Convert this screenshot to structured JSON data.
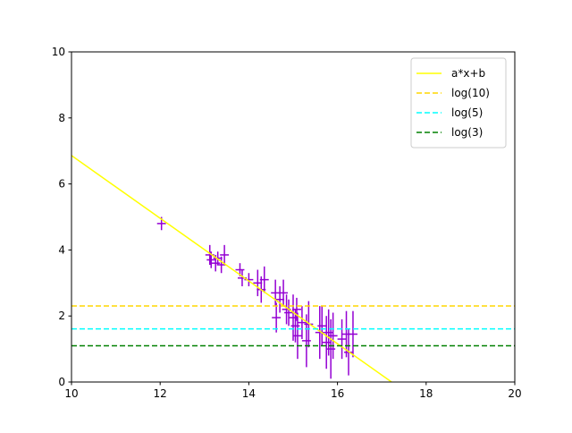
{
  "chart_data": {
    "type": "scatter",
    "xlim": [
      10,
      20
    ],
    "ylim": [
      0,
      10
    ],
    "xticks": [
      10,
      12,
      14,
      16,
      18,
      20
    ],
    "yticks": [
      0,
      2,
      4,
      6,
      8,
      10
    ],
    "legend": "upper right",
    "lines": [
      {
        "name": "a*x+b",
        "color": "#ffff00",
        "linestyle": "solid",
        "x": [
          10,
          17.22
        ],
        "values": [
          6.86,
          0
        ]
      }
    ],
    "hlines": [
      {
        "name": "log(10)",
        "color": "#ffd700",
        "linestyle": "dashed",
        "value": 2.303
      },
      {
        "name": "log(5)",
        "color": "#00ffff",
        "linestyle": "dashed",
        "value": 1.609
      },
      {
        "name": "log(3)",
        "color": "#008000",
        "linestyle": "dashed",
        "value": 1.099
      }
    ],
    "errorbars": {
      "color": "#9400d3",
      "x": [
        12.03,
        13.12,
        13.15,
        13.25,
        13.3,
        13.38,
        13.45,
        13.8,
        13.85,
        14.0,
        14.2,
        14.28,
        14.35,
        14.6,
        14.62,
        14.7,
        14.78,
        14.85,
        14.9,
        15.0,
        15.05,
        15.08,
        15.1,
        15.2,
        15.3,
        15.35,
        15.6,
        15.65,
        15.75,
        15.8,
        15.85,
        15.9,
        16.1,
        16.2,
        16.25,
        16.35
      ],
      "y": [
        4.8,
        3.85,
        3.7,
        3.6,
        3.75,
        3.55,
        3.85,
        3.4,
        3.15,
        3.1,
        3.0,
        2.8,
        3.1,
        2.7,
        1.95,
        2.5,
        2.7,
        2.2,
        2.1,
        1.95,
        1.7,
        2.2,
        1.4,
        1.8,
        1.25,
        1.75,
        1.5,
        1.7,
        1.2,
        1.5,
        1.0,
        1.4,
        1.3,
        1.45,
        0.9,
        1.45
      ],
      "xerr": [
        0.1,
        0.1,
        0.1,
        0.1,
        0.1,
        0.1,
        0.1,
        0.1,
        0.1,
        0.1,
        0.1,
        0.1,
        0.1,
        0.1,
        0.1,
        0.1,
        0.1,
        0.1,
        0.1,
        0.1,
        0.1,
        0.1,
        0.1,
        0.1,
        0.1,
        0.1,
        0.1,
        0.1,
        0.1,
        0.1,
        0.1,
        0.1,
        0.1,
        0.1,
        0.1,
        0.1
      ],
      "yerr": [
        0.2,
        0.3,
        0.25,
        0.25,
        0.2,
        0.25,
        0.3,
        0.2,
        0.25,
        0.2,
        0.4,
        0.4,
        0.4,
        0.4,
        0.45,
        0.4,
        0.4,
        0.45,
        0.4,
        0.7,
        0.5,
        0.35,
        0.7,
        0.5,
        0.8,
        0.7,
        0.8,
        0.6,
        0.8,
        0.7,
        0.9,
        0.7,
        0.6,
        0.7,
        0.7,
        0.7
      ]
    }
  }
}
